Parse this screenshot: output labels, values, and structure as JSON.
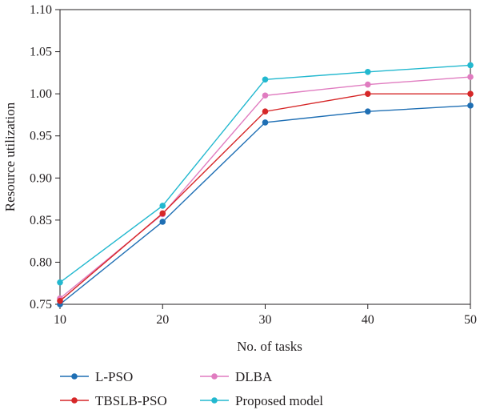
{
  "chart_data": {
    "type": "line",
    "title": "",
    "xlabel": "No. of tasks",
    "ylabel": "Resource utilization",
    "x": [
      10,
      20,
      30,
      40,
      50
    ],
    "xlim": [
      10,
      50
    ],
    "ylim": [
      0.75,
      1.1
    ],
    "xticks": [
      "10",
      "20",
      "30",
      "40",
      "50"
    ],
    "yticks": [
      "0.75",
      "0.80",
      "0.85",
      "0.90",
      "0.95",
      "1.00",
      "1.05",
      "1.10"
    ],
    "grid": false,
    "legend_position": "bottom",
    "series": [
      {
        "name": "L-PSO",
        "color": "#1f6fb4",
        "values": [
          0.75,
          0.848,
          0.966,
          0.979,
          0.986
        ]
      },
      {
        "name": "DLBA",
        "color": "#e07cc0",
        "values": [
          0.757,
          0.857,
          0.998,
          1.011,
          1.02
        ]
      },
      {
        "name": "TBSLB-PSO",
        "color": "#d62728",
        "values": [
          0.754,
          0.858,
          0.979,
          1.0,
          1.0
        ]
      },
      {
        "name": "Proposed model",
        "color": "#22b8cf",
        "values": [
          0.776,
          0.867,
          1.017,
          1.026,
          1.034
        ]
      }
    ]
  }
}
